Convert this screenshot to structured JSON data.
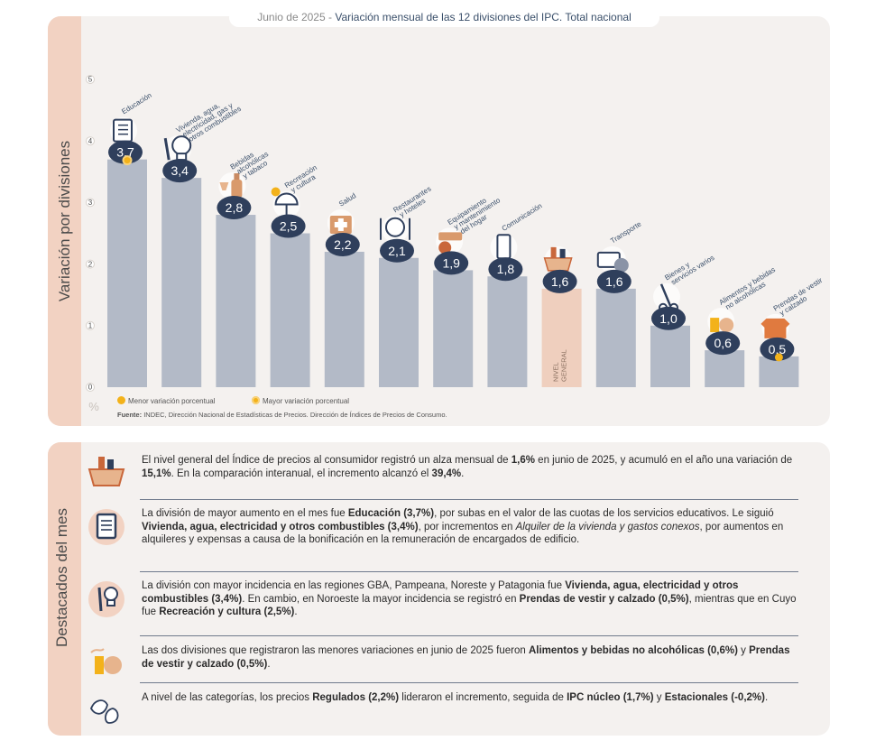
{
  "chart_title_date": "Junio de 2025 -",
  "chart_title_main": "Variación mensual de las 12 divisiones del IPC. Total nacional",
  "chart_side_label": "Variación por divisiones",
  "highlights_side_label": "Destacados del mes",
  "colors": {
    "bar": "#b3bac7",
    "bar_general": "#efcfbe",
    "circle": "#2f3f5c",
    "side": "#f2d2c2",
    "panel": "#f4f1ef",
    "min_dot": "#f3b21a",
    "max_dot": "#f3b21a"
  },
  "legend": {
    "min": "Menor variación porcentual",
    "max": "Mayor variación porcentual"
  },
  "source_label": "Fuente:",
  "source_text": "INDEC, Dirección Nacional de Estadísticas de Precios. Dirección de Índices de Precios de Consumo.",
  "chart_data": {
    "type": "bar",
    "ylabel": "%",
    "ylim": [
      0,
      5
    ],
    "yticks": [
      "0",
      "1",
      "2",
      "3",
      "4",
      "5"
    ],
    "categories": [
      "Educación",
      "Vivienda, agua, electricidad, gas y otros combustibles",
      "Bebidas alcohólicas y tabaco",
      "Recreación y cultura",
      "Salud",
      "Restaurantes y hoteles",
      "Equipamiento y mantenimiento del hogar",
      "Comunicación",
      "NIVEL GENERAL",
      "Transporte",
      "Bienes y servicios varios",
      "Alimentos y bebidas no alcohólicas",
      "Prendas de vestir y calzado"
    ],
    "values": [
      3.7,
      3.4,
      2.8,
      2.5,
      2.2,
      2.1,
      1.9,
      1.8,
      1.6,
      1.6,
      1.0,
      0.6,
      0.5
    ],
    "value_labels": [
      "3,7",
      "3,4",
      "2,8",
      "2,5",
      "2,2",
      "2,1",
      "1,9",
      "1,8",
      "1,6",
      "1,6",
      "1,0",
      "0,6",
      "0,5"
    ],
    "category_labels": [
      [
        "Educación"
      ],
      [
        "Vivienda, agua,",
        "electricidad, gas y",
        "otros combustibles"
      ],
      [
        "Bebidas",
        "alcohólicas",
        "y tabaco"
      ],
      [
        "Recreación",
        "y cultura"
      ],
      [
        "Salud"
      ],
      [
        "Restaurantes",
        "y hoteles"
      ],
      [
        "Equipamiento",
        "y mantenimiento",
        "del hogar"
      ],
      [
        "Comunicación"
      ],
      [],
      [
        "Transporte"
      ],
      [
        "Bienes y",
        "servicios varios"
      ],
      [
        "Alimentos y bebidas",
        "no alcohólicas"
      ],
      [
        "Prendas de vestir",
        "y calzado"
      ]
    ],
    "general_label": [
      "NIVEL",
      "GENERAL"
    ],
    "general_index": 8,
    "max_index": 0,
    "min_index": 12,
    "icons": [
      "notebook-icon",
      "lightbulb-icon",
      "wine-bottle-icon",
      "umbrella-icon",
      "medical-kit-icon",
      "cutlery-icon",
      "air-conditioner-icon",
      "smartphone-icon",
      "shopping-basket-icon",
      "transit-card-icon",
      "scissors-icon",
      "food-icon",
      "clothing-icon"
    ]
  },
  "highlights": [
    {
      "icon": "shopping-basket-icon",
      "html": "El nivel general del Índice de precios al consumidor registró un alza mensual de <b>1,6%</b> en junio de 2025, y acumuló en el año una variación de <b>15,1%</b>. En la comparación interanual, el incremento alcanzó el <b>39,4%</b>."
    },
    {
      "icon": "notebook-icon",
      "html": "La división de mayor aumento en el mes fue <b>Educación (3,7%)</b>, por subas en el valor de las cuotas de los servicios educativos. Le siguió <b>Vivienda, agua, electricidad y otros combustibles (3,4%)</b>, por incrementos en <i>Alquiler de la vivienda y gastos conexos</i>, por aumentos en alquileres y expensas a causa de la bonificación en la remuneración de encargados de edificio."
    },
    {
      "icon": "key-bulb-icon",
      "html": "La división con mayor incidencia en las regiones GBA, Pampeana, Noreste y Patagonia fue <b>Vivienda, agua, electricidad y otros combustibles (3,4%)</b>. En cambio, en Noroeste la mayor incidencia se registró en <b>Prendas de vestir y calzado (0,5%)</b>, mientras que en Cuyo fue <b>Recreación y cultura (2,5%)</b>."
    },
    {
      "icon": "food-drink-icon",
      "html": "Las dos divisiones que registraron las menores variaciones en junio de 2025 fueron <b>Alimentos y bebidas no alcohólicas (0,6%)</b> y <b>Prendas de vestir y calzado (0,5%)</b>."
    },
    {
      "icon": "produce-icon",
      "html": "A nivel de las categorías, los precios <b>Regulados (2,2%)</b> lideraron el incremento, seguida de <b>IPC núcleo (1,7%)</b> y <b>Estacionales (-0,2%)</b>."
    }
  ]
}
